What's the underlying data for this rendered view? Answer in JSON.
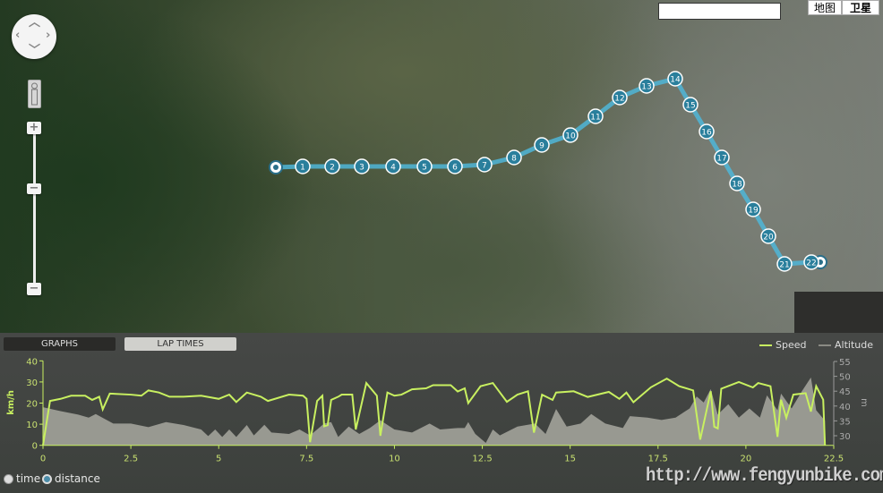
{
  "map": {
    "map_type_buttons": [
      "地图",
      "卫星"
    ],
    "selected_map_type": "卫星",
    "search_value": "",
    "route_color": "#4fb6d8",
    "markers": [
      "1",
      "2",
      "3",
      "4",
      "5",
      "6",
      "7",
      "8",
      "9",
      "10",
      "11",
      "12",
      "13",
      "14",
      "15",
      "16",
      "17",
      "18",
      "19",
      "20",
      "21",
      "22"
    ],
    "controls": {
      "pan": "pan-control",
      "pegman": "street-view-pegman",
      "zoom_in": "+",
      "zoom_out": "−"
    }
  },
  "panel": {
    "tabs": [
      {
        "label": "GRAPHS",
        "active": false
      },
      {
        "label": "LAP TIMES",
        "active": true
      }
    ],
    "legend": [
      {
        "label": "Speed",
        "color": "#c8f060"
      },
      {
        "label": "Altitude",
        "color": "#9a9a94"
      }
    ],
    "x_mode": {
      "options": [
        "time",
        "distance"
      ],
      "selected": "distance"
    },
    "watermark": "http://www.fengyunbike.com"
  },
  "chart_data": {
    "type": "line",
    "xlabel": "",
    "ylabel": "km/h",
    "y2label": "m",
    "xlim": [
      0,
      22.5
    ],
    "ylim": [
      0,
      40
    ],
    "y2lim": [
      27,
      55
    ],
    "x_ticks": [
      "0",
      "2.5",
      "5",
      "7.5",
      "10",
      "12.5",
      "15",
      "17.5",
      "20",
      "22.5"
    ],
    "y_ticks": [
      "0",
      "10",
      "20",
      "30",
      "40"
    ],
    "y2_ticks": [
      "30",
      "35",
      "40",
      "45",
      "50",
      "55"
    ],
    "grid": false,
    "legend_placement": "top-right",
    "series": [
      {
        "name": "Speed",
        "axis": "left",
        "color": "#c8f060",
        "x": [
          0,
          0.2,
          0.5,
          0.8,
          1.2,
          1.4,
          1.6,
          1.7,
          1.9,
          2.5,
          2.8,
          3.0,
          3.3,
          3.6,
          4.0,
          4.5,
          5.0,
          5.3,
          5.5,
          5.8,
          6.2,
          6.4,
          7.0,
          7.4,
          7.5,
          7.6,
          7.8,
          7.95,
          8.0,
          8.1,
          8.2,
          8.4,
          8.5,
          8.8,
          8.9,
          9.2,
          9.5,
          9.6,
          9.8,
          10.0,
          10.2,
          10.5,
          10.9,
          11.1,
          11.6,
          11.8,
          12.0,
          12.1,
          12.45,
          12.8,
          13.2,
          13.5,
          13.8,
          13.97,
          14.2,
          14.5,
          14.6,
          15.1,
          15.5,
          16.1,
          16.4,
          16.6,
          16.8,
          17.3,
          17.75,
          18.1,
          18.5,
          18.7,
          19.0,
          19.1,
          19.2,
          19.3,
          19.8,
          20.2,
          20.35,
          20.7,
          20.9,
          21.0,
          21.15,
          21.35,
          21.7,
          21.85,
          22.0,
          22.2,
          22.25
        ],
        "y": [
          0,
          21,
          22,
          23.5,
          23.5,
          21.5,
          23,
          17,
          24.5,
          24,
          23.5,
          26,
          25,
          23,
          23,
          23.5,
          22,
          24,
          20.5,
          25,
          23,
          21,
          24,
          23.5,
          22,
          1.5,
          21,
          23.5,
          9,
          9.5,
          21.5,
          23,
          24,
          24,
          7.5,
          29.5,
          23.5,
          4.5,
          25,
          23.5,
          24,
          26.5,
          27,
          28.5,
          28.5,
          25.5,
          27,
          20,
          28,
          29.5,
          20.6,
          24,
          25.6,
          6,
          24,
          21.5,
          25,
          25.6,
          22.9,
          25.3,
          22,
          25,
          20.4,
          27.5,
          31.6,
          28,
          26,
          2.7,
          25.6,
          8.8,
          8,
          26.8,
          30,
          27.4,
          29.5,
          28,
          4,
          21.6,
          13,
          24,
          24.7,
          16,
          28,
          21.6,
          0
        ]
      },
      {
        "name": "Altitude",
        "axis": "right",
        "color": "#9a9a94",
        "x": [
          0,
          0.5,
          1.0,
          1.3,
          1.5,
          2.0,
          2.5,
          3.0,
          3.5,
          4.0,
          4.5,
          4.7,
          4.9,
          5.1,
          5.3,
          5.5,
          5.8,
          6.0,
          6.3,
          6.5,
          7.0,
          7.3,
          7.6,
          8.0,
          8.2,
          8.4,
          8.7,
          9.0,
          9.3,
          9.6,
          10.0,
          10.5,
          11.0,
          11.3,
          11.8,
          12.0,
          12.1,
          12.3,
          12.6,
          12.8,
          13.0,
          13.5,
          14.0,
          14.3,
          14.6,
          14.9,
          15.3,
          15.6,
          16.0,
          16.5,
          16.7,
          17.2,
          17.6,
          18.0,
          18.4,
          18.6,
          18.8,
          19.0,
          19.2,
          19.5,
          19.8,
          20.1,
          20.4,
          20.6,
          20.9,
          21.0,
          21.3,
          21.6,
          21.85,
          22.0,
          22.25
        ],
        "y": [
          39.6,
          38.3,
          37.1,
          36.1,
          37.3,
          34.1,
          34.1,
          32.9,
          34.6,
          33.6,
          32.1,
          29.9,
          32.1,
          29.6,
          32.1,
          29.6,
          33.6,
          30.1,
          33.7,
          31.1,
          30.6,
          32.1,
          30.1,
          34.1,
          34.6,
          29.6,
          33.1,
          30.6,
          32.6,
          35.2,
          32.1,
          31.1,
          34.1,
          32.1,
          32.6,
          32.6,
          34.6,
          30.6,
          27.6,
          32.1,
          30.1,
          33.1,
          34.1,
          30.6,
          39.0,
          33.1,
          34.1,
          37.3,
          34.1,
          32.6,
          36.6,
          36.1,
          35.3,
          36.1,
          39.2,
          43.2,
          41.2,
          45.7,
          37.1,
          40.6,
          36.1,
          39.2,
          36.1,
          43.6,
          38.6,
          44.2,
          39.2,
          45.1,
          49.6,
          38.6,
          35.1
        ]
      }
    ]
  }
}
